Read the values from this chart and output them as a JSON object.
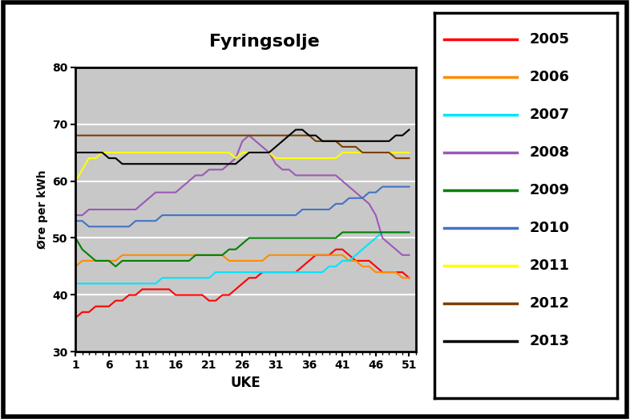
{
  "title": "Fyringsolje",
  "xlabel": "UKE",
  "ylabel": "Øre per kWh",
  "ylim": [
    30,
    80
  ],
  "xlim": [
    1,
    52
  ],
  "xticks": [
    1,
    6,
    11,
    16,
    21,
    26,
    31,
    36,
    41,
    46,
    51
  ],
  "yticks": [
    30,
    40,
    50,
    60,
    70,
    80
  ],
  "plot_bg": "#c8c8c8",
  "fig_bg": "#ffffff",
  "series": {
    "2005": {
      "color": "#ff0000",
      "data": [
        36,
        37,
        37,
        38,
        38,
        38,
        39,
        39,
        40,
        40,
        41,
        41,
        41,
        41,
        41,
        40,
        40,
        40,
        40,
        40,
        39,
        39,
        40,
        40,
        41,
        42,
        43,
        43,
        44,
        44,
        44,
        44,
        44,
        44,
        45,
        46,
        47,
        47,
        47,
        48,
        48,
        47,
        46,
        46,
        46,
        45,
        44,
        44,
        44,
        44,
        43
      ]
    },
    "2006": {
      "color": "#ff8c00",
      "data": [
        45,
        46,
        46,
        46,
        46,
        46,
        46,
        47,
        47,
        47,
        47,
        47,
        47,
        47,
        47,
        47,
        47,
        47,
        47,
        47,
        47,
        47,
        47,
        46,
        46,
        46,
        46,
        46,
        46,
        47,
        47,
        47,
        47,
        47,
        47,
        47,
        47,
        47,
        47,
        47,
        47,
        46,
        46,
        45,
        45,
        44,
        44,
        44,
        44,
        43,
        43
      ]
    },
    "2007": {
      "color": "#00e5ff",
      "data": [
        42,
        42,
        42,
        42,
        42,
        42,
        42,
        42,
        42,
        42,
        42,
        42,
        42,
        43,
        43,
        43,
        43,
        43,
        43,
        43,
        43,
        44,
        44,
        44,
        44,
        44,
        44,
        44,
        44,
        44,
        44,
        44,
        44,
        44,
        44,
        44,
        44,
        44,
        45,
        45,
        46,
        46,
        47,
        48,
        49,
        50,
        51,
        51,
        51,
        51,
        51
      ]
    },
    "2008": {
      "color": "#9b59b6",
      "data": [
        54,
        54,
        55,
        55,
        55,
        55,
        55,
        55,
        55,
        55,
        56,
        57,
        58,
        58,
        58,
        58,
        59,
        60,
        61,
        61,
        62,
        62,
        62,
        63,
        64,
        67,
        68,
        67,
        66,
        65,
        63,
        62,
        62,
        61,
        61,
        61,
        61,
        61,
        61,
        61,
        60,
        59,
        58,
        57,
        56,
        54,
        50,
        49,
        48,
        47,
        47
      ]
    },
    "2009": {
      "color": "#008000",
      "data": [
        50,
        48,
        47,
        46,
        46,
        46,
        45,
        46,
        46,
        46,
        46,
        46,
        46,
        46,
        46,
        46,
        46,
        46,
        47,
        47,
        47,
        47,
        47,
        48,
        48,
        49,
        50,
        50,
        50,
        50,
        50,
        50,
        50,
        50,
        50,
        50,
        50,
        50,
        50,
        50,
        51,
        51,
        51,
        51,
        51,
        51,
        51,
        51,
        51,
        51,
        51
      ]
    },
    "2010": {
      "color": "#4472c4",
      "data": [
        53,
        53,
        52,
        52,
        52,
        52,
        52,
        52,
        52,
        53,
        53,
        53,
        53,
        54,
        54,
        54,
        54,
        54,
        54,
        54,
        54,
        54,
        54,
        54,
        54,
        54,
        54,
        54,
        54,
        54,
        54,
        54,
        54,
        54,
        55,
        55,
        55,
        55,
        55,
        56,
        56,
        57,
        57,
        57,
        58,
        58,
        59,
        59,
        59,
        59,
        59
      ]
    },
    "2011": {
      "color": "#ffff00",
      "data": [
        60,
        62,
        64,
        64,
        65,
        65,
        65,
        65,
        65,
        65,
        65,
        65,
        65,
        65,
        65,
        65,
        65,
        65,
        65,
        65,
        65,
        65,
        65,
        65,
        64,
        65,
        65,
        65,
        65,
        65,
        64,
        64,
        64,
        64,
        64,
        64,
        64,
        64,
        64,
        64,
        65,
        65,
        65,
        65,
        65,
        65,
        65,
        65,
        65,
        65,
        65
      ]
    },
    "2012": {
      "color": "#7b3f00",
      "data": [
        68,
        68,
        68,
        68,
        68,
        68,
        68,
        68,
        68,
        68,
        68,
        68,
        68,
        68,
        68,
        68,
        68,
        68,
        68,
        68,
        68,
        68,
        68,
        68,
        68,
        68,
        68,
        68,
        68,
        68,
        68,
        68,
        68,
        68,
        68,
        68,
        67,
        67,
        67,
        67,
        66,
        66,
        66,
        65,
        65,
        65,
        65,
        65,
        64,
        64,
        64
      ]
    },
    "2013": {
      "color": "#000000",
      "data": [
        65,
        65,
        65,
        65,
        65,
        64,
        64,
        63,
        63,
        63,
        63,
        63,
        63,
        63,
        63,
        63,
        63,
        63,
        63,
        63,
        63,
        63,
        63,
        63,
        63,
        64,
        65,
        65,
        65,
        65,
        66,
        67,
        68,
        69,
        69,
        68,
        68,
        67,
        67,
        67,
        67,
        67,
        67,
        67,
        67,
        67,
        67,
        67,
        68,
        68,
        69
      ]
    }
  },
  "year_order": [
    "2005",
    "2006",
    "2007",
    "2008",
    "2009",
    "2010",
    "2011",
    "2012",
    "2013"
  ]
}
